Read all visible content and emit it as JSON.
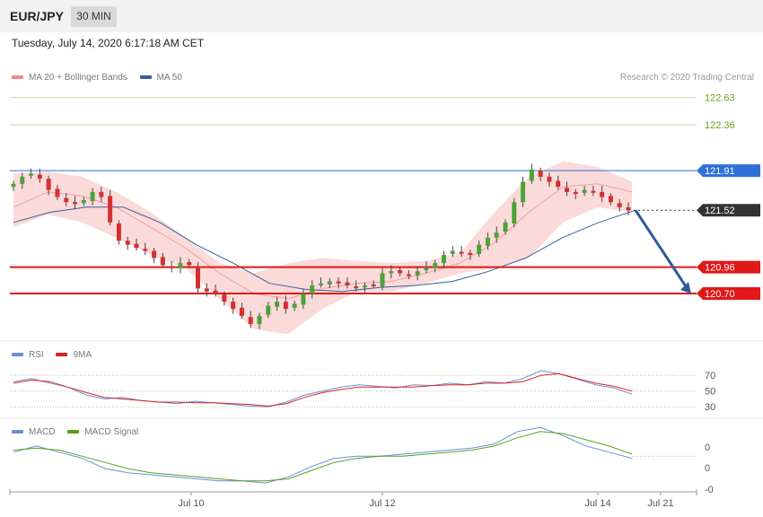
{
  "header": {
    "symbol": "EUR/JPY",
    "timeframe": "30 MIN"
  },
  "datetime": "Tuesday, July 14, 2020 6:17:18 AM CET",
  "credit": "Research © 2020 Trading Central",
  "legends": {
    "main": [
      {
        "label": "MA 20 + Bollinger Bands",
        "color": "#f08a8a"
      },
      {
        "label": "MA 50",
        "color": "#3a5f9e"
      }
    ],
    "rsi": [
      {
        "label": "RSI",
        "color": "#6a8ed8"
      },
      {
        "label": "9MA",
        "color": "#e02020"
      }
    ],
    "macd": [
      {
        "label": "MACD",
        "color": "#6a8ed8"
      },
      {
        "label": "MACD Signal",
        "color": "#55a020"
      }
    ]
  },
  "levels": [
    {
      "value": 122.63,
      "label": "122.63",
      "kind": "target"
    },
    {
      "value": 122.36,
      "label": "122.36",
      "kind": "target"
    },
    {
      "value": 121.91,
      "label": "121.91",
      "kind": "pivot"
    },
    {
      "value": 121.52,
      "label": "121.52",
      "kind": "last"
    },
    {
      "value": 120.96,
      "label": "120.96",
      "kind": "support"
    },
    {
      "value": 120.7,
      "label": "120.70",
      "kind": "support"
    }
  ],
  "chart_data": {
    "type": "candlestick",
    "x_ticks": [
      "Jul 10",
      "Jul 12",
      "Jul 14",
      "Jul 21"
    ],
    "y_range": [
      120.25,
      122.75
    ],
    "close_series": [
      121.78,
      121.85,
      121.88,
      121.83,
      121.72,
      121.65,
      121.6,
      121.58,
      121.62,
      121.7,
      121.65,
      121.4,
      121.22,
      121.18,
      121.15,
      121.12,
      121.05,
      120.98,
      120.95,
      121.0,
      120.98,
      120.75,
      120.72,
      120.7,
      120.62,
      120.55,
      120.48,
      120.4,
      120.48,
      120.58,
      120.62,
      120.55,
      120.6,
      120.7,
      120.78,
      120.8,
      120.82,
      120.8,
      120.78,
      120.76,
      120.78,
      120.78,
      120.9,
      120.92,
      120.9,
      120.88,
      120.92,
      120.96,
      121.0,
      121.08,
      121.12,
      121.1,
      121.08,
      121.18,
      121.25,
      121.3,
      121.4,
      121.6,
      121.8,
      121.92,
      121.85,
      121.8,
      121.75,
      121.7,
      121.68,
      121.72,
      121.7,
      121.65,
      121.6,
      121.55,
      121.52
    ],
    "bb_upper": [
      121.88,
      121.9,
      121.85,
      121.7,
      121.5,
      121.25,
      121.0,
      120.9,
      121.0,
      121.05,
      121.02,
      121.0,
      121.02,
      121.1,
      121.5,
      121.85,
      122.0,
      121.95,
      121.8
    ],
    "ma20": [
      121.55,
      121.7,
      121.66,
      121.55,
      121.35,
      121.15,
      120.9,
      120.7,
      120.65,
      120.75,
      120.8,
      120.82,
      120.9,
      121.0,
      121.2,
      121.5,
      121.75,
      121.78,
      121.7
    ],
    "bb_lower": [
      121.35,
      121.48,
      121.4,
      121.25,
      121.08,
      120.95,
      120.65,
      120.35,
      120.3,
      120.55,
      120.72,
      120.72,
      120.8,
      120.9,
      120.95,
      121.05,
      121.4,
      121.55,
      121.5
    ],
    "ma50": [
      121.4,
      121.5,
      121.55,
      121.55,
      121.4,
      121.18,
      121.0,
      120.8,
      120.74,
      120.72,
      120.76,
      120.78,
      120.82,
      120.92,
      121.05,
      121.25,
      121.4,
      121.52
    ],
    "forecast": {
      "from": 121.52,
      "to": 120.7
    },
    "rsi": {
      "levels": [
        70,
        50,
        30
      ],
      "labels": [
        "70",
        "50",
        "30"
      ],
      "rsi": [
        62,
        66,
        60,
        55,
        45,
        40,
        42,
        38,
        36,
        34,
        37,
        35,
        33,
        31,
        30,
        36,
        45,
        50,
        55,
        58,
        56,
        54,
        58,
        57,
        60,
        58,
        62,
        60,
        66,
        76,
        72,
        65,
        58,
        54,
        46
      ],
      "ma9": [
        60,
        64,
        62,
        55,
        48,
        42,
        40,
        38,
        36,
        36,
        35,
        35,
        34,
        33,
        31,
        34,
        42,
        48,
        52,
        55,
        55,
        55,
        55,
        57,
        58,
        58,
        60,
        60,
        62,
        70,
        72,
        66,
        60,
        56,
        50
      ]
    },
    "macd": {
      "labels": [
        "0",
        "0",
        "-0"
      ],
      "macd": [
        0.02,
        0.05,
        0.02,
        -0.01,
        -0.06,
        -0.08,
        -0.09,
        -0.1,
        -0.11,
        -0.12,
        -0.12,
        -0.13,
        -0.1,
        -0.05,
        -0.01,
        0.0,
        0.0,
        0.01,
        0.02,
        0.03,
        0.04,
        0.06,
        0.12,
        0.14,
        0.1,
        0.05,
        0.02,
        -0.01
      ],
      "signal": [
        0.03,
        0.04,
        0.03,
        0.0,
        -0.03,
        -0.06,
        -0.08,
        -0.09,
        -0.1,
        -0.11,
        -0.12,
        -0.12,
        -0.11,
        -0.07,
        -0.03,
        -0.01,
        0.0,
        0.0,
        0.01,
        0.02,
        0.03,
        0.05,
        0.09,
        0.12,
        0.11,
        0.08,
        0.05,
        0.01
      ]
    }
  },
  "colors": {
    "pivot": "#2f6fd8",
    "support": "#e01818",
    "target": "#6aa020",
    "last": "#333333",
    "bull": "#4aa436",
    "bear": "#d43030",
    "band": "#fbdada",
    "forecast": "#2e5c9a"
  }
}
